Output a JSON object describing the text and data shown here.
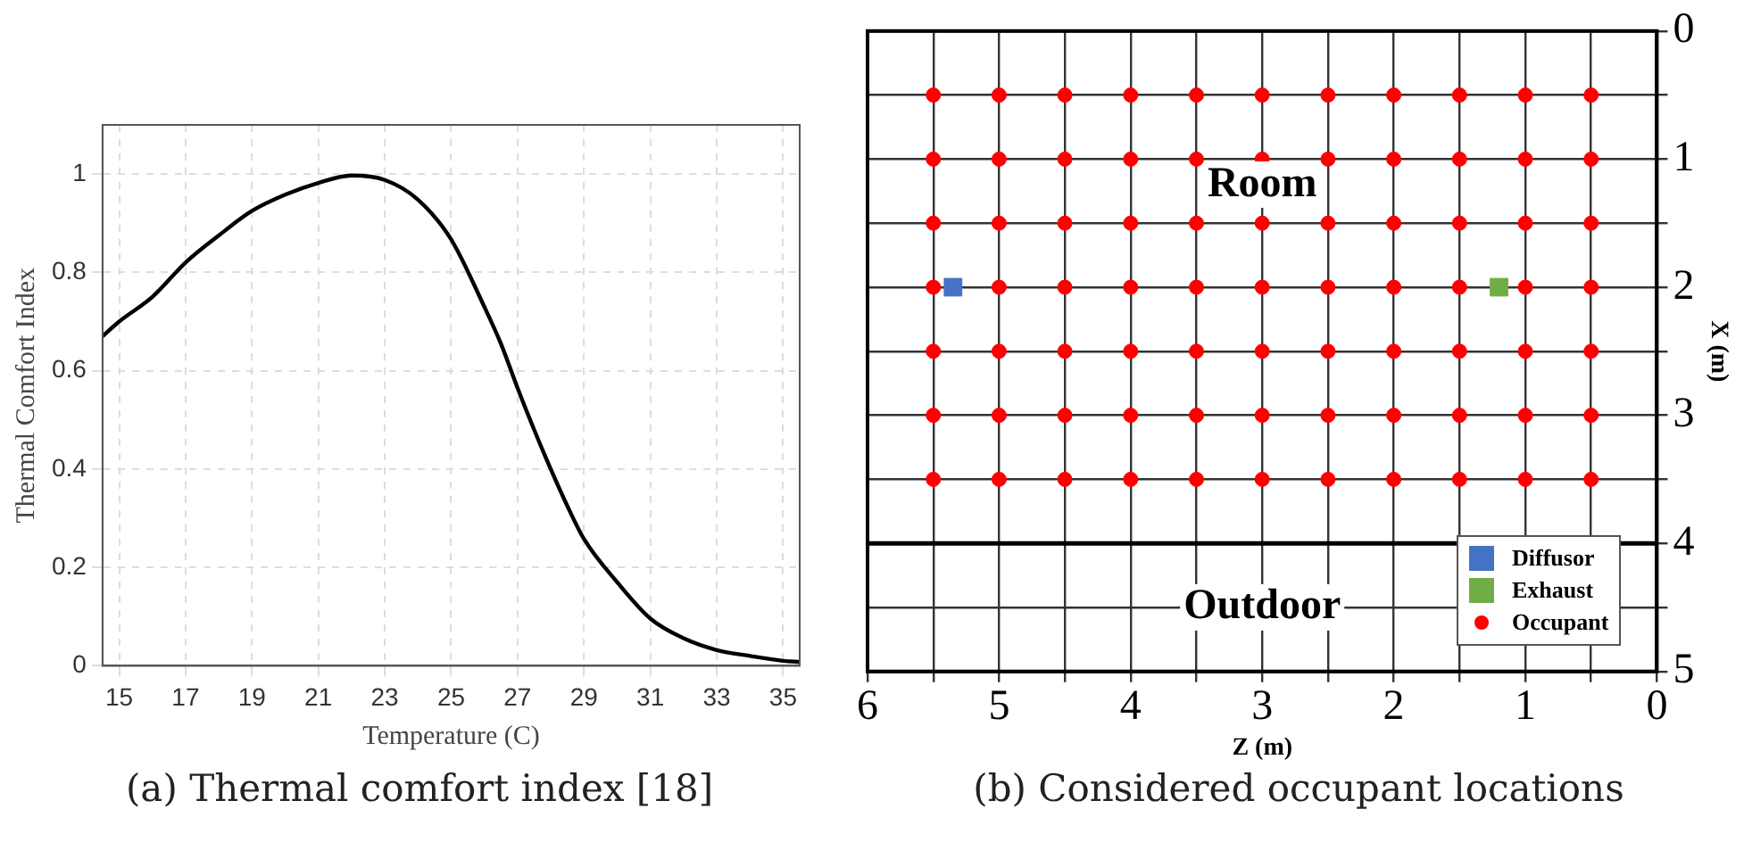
{
  "chart_data": [
    {
      "type": "line",
      "xlabel": "Temperature (C)",
      "ylabel": "Thermal Comfort Index",
      "color": "#000000",
      "marker": "none",
      "line_style": "solid",
      "legend": false,
      "grid": true,
      "x": [
        14.5,
        15,
        16,
        17,
        18,
        19,
        20,
        21,
        22,
        23,
        24,
        25,
        26,
        26.5,
        27,
        27.5,
        28,
        28.5,
        29,
        30,
        31,
        32,
        33,
        34,
        35,
        35.5
      ],
      "values": [
        0.67,
        0.7,
        0.75,
        0.82,
        0.875,
        0.925,
        0.958,
        0.982,
        0.997,
        0.988,
        0.948,
        0.867,
        0.73,
        0.655,
        0.565,
        0.48,
        0.4,
        0.325,
        0.258,
        0.17,
        0.096,
        0.056,
        0.032,
        0.02,
        0.01,
        0.008
      ],
      "xlim": [
        14.5,
        35.5
      ],
      "xticks": [
        15,
        17,
        19,
        21,
        23,
        25,
        27,
        29,
        31,
        33,
        35
      ],
      "ylim": [
        0,
        1.1
      ],
      "yticks": [
        0,
        0.2,
        0.4,
        0.6,
        0.8,
        1
      ],
      "annotations": [
        "(a) Thermal comfort index [18]"
      ]
    },
    {
      "type": "scatter",
      "xlabel": "Z (m)",
      "ylabel": "X (m)",
      "grid": true,
      "legend": "bottom right",
      "xlim": [
        6,
        0
      ],
      "ylim": [
        5,
        0
      ],
      "xticks": [
        6,
        {
          "value": 5.5,
          "label": null
        },
        5,
        {
          "value": 4.5,
          "label": null
        },
        4,
        {
          "value": 3.5,
          "label": null
        },
        3,
        {
          "value": 2.5,
          "label": null
        },
        2,
        {
          "value": 1.5,
          "label": null
        },
        1,
        {
          "value": 0.5,
          "label": null
        },
        0
      ],
      "yticks": [
        0,
        {
          "value": 0.5,
          "label": null
        },
        1,
        {
          "value": 1.5,
          "label": null
        },
        2,
        {
          "value": 2.5,
          "label": null
        },
        3,
        {
          "value": 3.5,
          "label": null
        },
        4,
        {
          "value": 4.5,
          "label": null
        },
        5
      ],
      "series": [
        {
          "name": "Diffusor",
          "color": "#4472c4",
          "marker": "square",
          "x": [
            5.35
          ],
          "values": [
            2
          ]
        },
        {
          "name": "Exhaust",
          "color": "#70ad47",
          "marker": "square",
          "x": [
            1.2
          ],
          "values": [
            2
          ]
        },
        {
          "name": "Occupant",
          "color": "#ff0000",
          "marker": "circle",
          "x": [
            5.5,
            5,
            4.5,
            4,
            3.5,
            3,
            2.5,
            2,
            1.5,
            1,
            0.5,
            5.5,
            5,
            4.5,
            4,
            3.5,
            3,
            2.5,
            2,
            1.5,
            1,
            0.5,
            5.5,
            5,
            4.5,
            4,
            3.5,
            3,
            2.5,
            2,
            1.5,
            1,
            0.5,
            5.5,
            5,
            4.5,
            4,
            3.5,
            3,
            2.5,
            2,
            1.5,
            1,
            0.5,
            5.5,
            5,
            4.5,
            4,
            3.5,
            3,
            2.5,
            2,
            1.5,
            1,
            0.5,
            5.5,
            5,
            4.5,
            4,
            3.5,
            3,
            2.5,
            2,
            1.5,
            1,
            0.5,
            5.5,
            5,
            4.5,
            4,
            3.5,
            3,
            2.5,
            2,
            1.5,
            1,
            0.5
          ],
          "values": [
            0.5,
            0.5,
            0.5,
            0.5,
            0.5,
            0.5,
            0.5,
            0.5,
            0.5,
            0.5,
            0.5,
            1,
            1,
            1,
            1,
            1,
            1,
            1,
            1,
            1,
            1,
            1,
            1.5,
            1.5,
            1.5,
            1.5,
            1.5,
            1.5,
            1.5,
            1.5,
            1.5,
            1.5,
            1.5,
            2,
            2,
            2,
            2,
            2,
            2,
            2,
            2,
            2,
            2,
            2,
            2.5,
            2.5,
            2.5,
            2.5,
            2.5,
            2.5,
            2.5,
            2.5,
            2.5,
            2.5,
            2.5,
            3,
            3,
            3,
            3,
            3,
            3,
            3,
            3,
            3,
            3,
            3,
            3.5,
            3.5,
            3.5,
            3.5,
            3.5,
            3.5,
            3.5,
            3.5,
            3.5,
            3.5,
            3.5
          ]
        }
      ],
      "ref_lines": [
        {
          "axis": "y",
          "value": 4
        }
      ],
      "annotations": [
        "Room",
        "Outdoor",
        "(b) Considered occupant locations"
      ]
    }
  ]
}
